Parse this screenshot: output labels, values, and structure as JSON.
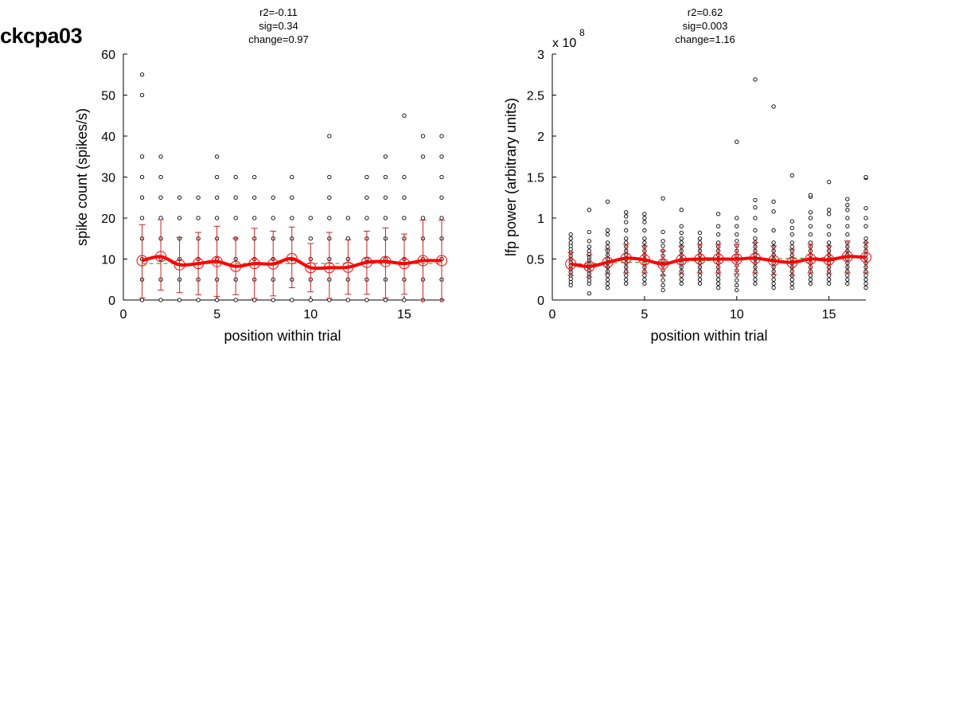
{
  "page_title": "ckcpa03",
  "colors": {
    "points": "#000000",
    "mean": "#ff0000",
    "errorbar": "#cc2222",
    "fit": "#33aa33"
  },
  "chart_data": [
    {
      "type": "scatter",
      "stats": [
        "r2=-0.11",
        "sig=0.34",
        "change=0.97"
      ],
      "xlabel": "position within trial",
      "ylabel": "spike count (spikes/s)",
      "xlim": [
        0,
        17
      ],
      "ylim": [
        0,
        60
      ],
      "xticks": [
        0,
        5,
        10,
        15
      ],
      "yticks": [
        0,
        10,
        20,
        30,
        40,
        50,
        60
      ],
      "exponent_label": "",
      "grid": false,
      "points": [
        [
          1,
          [
            0,
            5,
            10,
            15,
            20,
            25,
            30,
            35,
            50,
            55
          ]
        ],
        [
          2,
          [
            0,
            5,
            10,
            15,
            20,
            25,
            30,
            35
          ]
        ],
        [
          3,
          [
            0,
            5,
            10,
            15,
            20,
            25
          ]
        ],
        [
          4,
          [
            0,
            5,
            10,
            15,
            20,
            25
          ]
        ],
        [
          5,
          [
            0,
            5,
            10,
            15,
            20,
            25,
            30,
            35
          ]
        ],
        [
          6,
          [
            0,
            5,
            10,
            15,
            20,
            25,
            30
          ]
        ],
        [
          7,
          [
            0,
            5,
            10,
            15,
            20,
            25,
            30
          ]
        ],
        [
          8,
          [
            0,
            5,
            10,
            15,
            20,
            25
          ]
        ],
        [
          9,
          [
            0,
            5,
            10,
            15,
            20,
            25,
            30
          ]
        ],
        [
          10,
          [
            0,
            5,
            10,
            15,
            20
          ]
        ],
        [
          11,
          [
            0,
            5,
            10,
            15,
            20,
            25,
            30,
            40
          ]
        ],
        [
          12,
          [
            0,
            5,
            10,
            15,
            20
          ]
        ],
        [
          13,
          [
            0,
            5,
            10,
            15,
            20,
            25,
            30
          ]
        ],
        [
          14,
          [
            0,
            5,
            10,
            15,
            20,
            25,
            30,
            35
          ]
        ],
        [
          15,
          [
            0,
            5,
            10,
            15,
            20,
            25,
            30,
            45
          ]
        ],
        [
          16,
          [
            0,
            5,
            10,
            15,
            20,
            35,
            40
          ]
        ],
        [
          17,
          [
            0,
            5,
            10,
            15,
            20,
            25,
            30,
            35,
            40
          ]
        ]
      ],
      "means": [
        9.6,
        10.6,
        8.6,
        8.9,
        9.4,
        8.2,
        8.9,
        8.8,
        10.1,
        7.9,
        7.9,
        8.0,
        9.2,
        9.4,
        8.9,
        9.6,
        9.6
      ],
      "err_low": [
        0.5,
        2.4,
        1.8,
        1.3,
        0.9,
        1.3,
        0.4,
        1.0,
        3.0,
        2.0,
        0.4,
        1.4,
        1.4,
        0.5,
        1.4,
        0.0,
        0.0
      ],
      "err_high": [
        18.4,
        19.6,
        15.3,
        16.5,
        18.0,
        15.1,
        17.5,
        16.8,
        17.8,
        13.8,
        16.5,
        14.7,
        16.8,
        17.6,
        16.1,
        19.5,
        19.5
      ],
      "fit": [
        [
          1,
          8.9
        ],
        [
          17,
          8.9
        ]
      ]
    },
    {
      "type": "scatter",
      "stats": [
        "r2=0.62",
        "sig=0.003",
        "change=1.16"
      ],
      "xlabel": "position within trial",
      "ylabel": "lfp power (arbitrary units)",
      "xlim": [
        0,
        17
      ],
      "ylim": [
        0,
        3
      ],
      "xticks": [
        0,
        5,
        10,
        15
      ],
      "yticks": [
        0,
        0.5,
        1,
        1.5,
        2,
        2.5,
        3
      ],
      "exponent_label": "x 10",
      "exponent_power": "8",
      "grid": false,
      "points": [
        [
          1,
          [
            0.18,
            0.22,
            0.26,
            0.3,
            0.34,
            0.38,
            0.42,
            0.46,
            0.5,
            0.54,
            0.58,
            0.62,
            0.66,
            0.7,
            0.75,
            0.8
          ]
        ],
        [
          2,
          [
            0.08,
            0.2,
            0.24,
            0.28,
            0.32,
            0.36,
            0.4,
            0.44,
            0.48,
            0.52,
            0.56,
            0.6,
            0.65,
            0.72,
            0.83,
            1.1
          ]
        ],
        [
          3,
          [
            0.15,
            0.2,
            0.25,
            0.3,
            0.35,
            0.4,
            0.45,
            0.5,
            0.55,
            0.6,
            0.65,
            0.7,
            0.8,
            0.85,
            1.2
          ]
        ],
        [
          4,
          [
            0.2,
            0.25,
            0.3,
            0.35,
            0.4,
            0.45,
            0.5,
            0.55,
            0.6,
            0.65,
            0.7,
            0.75,
            0.85,
            0.95,
            1.02,
            1.07
          ]
        ],
        [
          5,
          [
            0.2,
            0.25,
            0.3,
            0.35,
            0.4,
            0.45,
            0.5,
            0.55,
            0.6,
            0.65,
            0.7,
            0.75,
            0.85,
            0.95,
            1.0,
            1.05
          ]
        ],
        [
          6,
          [
            0.12,
            0.18,
            0.24,
            0.3,
            0.36,
            0.42,
            0.48,
            0.54,
            0.6,
            0.66,
            0.72,
            0.83,
            1.24
          ]
        ],
        [
          7,
          [
            0.2,
            0.25,
            0.3,
            0.35,
            0.4,
            0.45,
            0.5,
            0.55,
            0.6,
            0.65,
            0.7,
            0.75,
            0.82,
            0.9,
            1.1
          ]
        ],
        [
          8,
          [
            0.2,
            0.25,
            0.3,
            0.35,
            0.4,
            0.45,
            0.5,
            0.55,
            0.6,
            0.65,
            0.7,
            0.75,
            0.82
          ]
        ],
        [
          9,
          [
            0.15,
            0.2,
            0.25,
            0.3,
            0.35,
            0.4,
            0.45,
            0.5,
            0.55,
            0.6,
            0.65,
            0.7,
            0.8,
            0.9,
            1.05
          ]
        ],
        [
          10,
          [
            0.12,
            0.18,
            0.24,
            0.3,
            0.36,
            0.42,
            0.48,
            0.54,
            0.6,
            0.66,
            0.72,
            0.8,
            0.9,
            1.0,
            1.93
          ]
        ],
        [
          11,
          [
            0.2,
            0.25,
            0.3,
            0.35,
            0.4,
            0.45,
            0.5,
            0.55,
            0.6,
            0.65,
            0.7,
            0.75,
            0.85,
            1.0,
            1.13,
            1.22,
            2.69
          ]
        ],
        [
          12,
          [
            0.15,
            0.2,
            0.25,
            0.3,
            0.35,
            0.4,
            0.45,
            0.5,
            0.55,
            0.6,
            0.65,
            0.7,
            0.85,
            1.08,
            1.2,
            2.36
          ]
        ],
        [
          13,
          [
            0.15,
            0.2,
            0.25,
            0.3,
            0.35,
            0.4,
            0.45,
            0.5,
            0.55,
            0.6,
            0.65,
            0.7,
            0.8,
            0.88,
            0.96,
            1.52
          ]
        ],
        [
          14,
          [
            0.2,
            0.25,
            0.3,
            0.35,
            0.4,
            0.45,
            0.5,
            0.55,
            0.6,
            0.65,
            0.7,
            0.8,
            0.9,
            1.0,
            1.07,
            1.26,
            1.28
          ]
        ],
        [
          15,
          [
            0.2,
            0.25,
            0.3,
            0.35,
            0.4,
            0.45,
            0.5,
            0.55,
            0.6,
            0.65,
            0.7,
            0.8,
            0.9,
            1.05,
            1.1,
            1.44
          ]
        ],
        [
          16,
          [
            0.2,
            0.25,
            0.3,
            0.35,
            0.4,
            0.45,
            0.5,
            0.55,
            0.6,
            0.65,
            0.7,
            0.8,
            0.9,
            1.0,
            1.1,
            1.16,
            1.23
          ]
        ],
        [
          17,
          [
            0.15,
            0.2,
            0.25,
            0.3,
            0.35,
            0.4,
            0.45,
            0.5,
            0.55,
            0.6,
            0.65,
            0.7,
            0.75,
            0.9,
            1.0,
            1.12,
            1.49,
            1.5
          ]
        ]
      ],
      "means": [
        0.44,
        0.41,
        0.46,
        0.51,
        0.49,
        0.44,
        0.49,
        0.5,
        0.5,
        0.5,
        0.51,
        0.48,
        0.46,
        0.5,
        0.49,
        0.53,
        0.52
      ],
      "err_low": [
        0.3,
        0.28,
        0.32,
        0.33,
        0.33,
        0.3,
        0.32,
        0.33,
        0.33,
        0.32,
        0.33,
        0.31,
        0.3,
        0.33,
        0.32,
        0.33,
        0.33
      ],
      "err_high": [
        0.58,
        0.55,
        0.62,
        0.68,
        0.66,
        0.6,
        0.66,
        0.68,
        0.68,
        0.68,
        0.7,
        0.66,
        0.62,
        0.68,
        0.66,
        0.72,
        0.7
      ],
      "fit": [
        [
          1,
          0.44
        ],
        [
          17,
          0.53
        ]
      ]
    }
  ]
}
